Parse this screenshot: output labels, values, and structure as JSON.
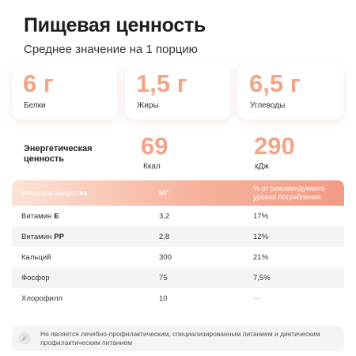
{
  "header": {
    "title": "Пищевая ценность",
    "subtitle": "Среднее значение на 1 порцию"
  },
  "macros": [
    {
      "value": "6 г",
      "label": "Белки"
    },
    {
      "value": "1,5 г",
      "label": "Жиры"
    },
    {
      "value": "6,5 г",
      "label": "Углеводы"
    }
  ],
  "energy": {
    "label": "Энергетическая ценность",
    "kcal_value": "69",
    "kcal_unit": "Ккал",
    "kj_value": "290",
    "kj_unit": "кДж"
  },
  "table": {
    "headers": [
      "Активные вещества",
      "МГ",
      "% от рекомендуемого уровня потребления"
    ],
    "rows": [
      {
        "name": "Витамин",
        "suffix": "E",
        "mg": "3,2",
        "percent": "17%"
      },
      {
        "name": "Витамин",
        "suffix": "PP",
        "mg": "2,8",
        "percent": "12%"
      },
      {
        "name": "Кальций",
        "suffix": "",
        "mg": "300",
        "percent": "21%"
      },
      {
        "name": "Фосфор",
        "suffix": "",
        "mg": "75",
        "percent": "7,5%"
      },
      {
        "name": "Хлорофилл",
        "suffix": "",
        "mg": "10",
        "percent": "—"
      }
    ]
  },
  "notice": {
    "icon": "info-leaf-icon",
    "text": "Не является лечебно-профилактическим, специализированным питанием и диетическим профилактическим питанием"
  },
  "colors": {
    "accent": "#f3a486",
    "header_gradient_start": "#fce2d6",
    "header_gradient_end": "#f29b86"
  }
}
